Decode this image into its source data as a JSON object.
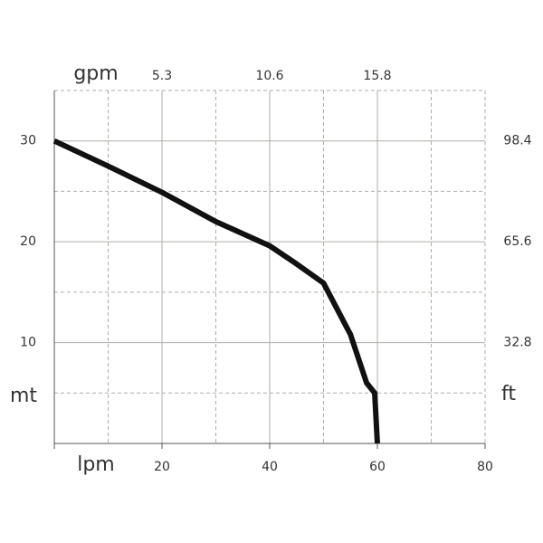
{
  "chart_data": {
    "type": "line",
    "x_label": "lpm",
    "y_label": "mt",
    "x2_label": "gpm",
    "y2_label": "ft",
    "x": [
      0,
      10,
      20,
      30,
      40,
      45,
      50,
      55,
      58,
      59.5,
      60
    ],
    "series": [
      {
        "color": "#111111",
        "values": [
          30,
          27.5,
          24.9,
          22,
          19.6,
          17.8,
          15.9,
          10.8,
          6,
          5,
          0
        ]
      }
    ],
    "xlim": [
      0,
      80
    ],
    "ylim": [
      0,
      35
    ],
    "xticks": [
      20,
      40,
      60,
      80
    ],
    "yticks": [
      10,
      20,
      30
    ],
    "xminorticks": [
      10,
      30,
      50,
      70
    ],
    "yminorticks": [
      5,
      15,
      25
    ],
    "x2ticks": [
      {
        "value": 20,
        "label": "5.3"
      },
      {
        "value": 40,
        "label": "10.6"
      },
      {
        "value": 60,
        "label": "15.8"
      }
    ],
    "y2ticks": [
      {
        "value": 30,
        "label": "98.4"
      },
      {
        "value": 20,
        "label": "65.6"
      },
      {
        "value": 10,
        "label": "32.8"
      }
    ],
    "grid": true
  }
}
